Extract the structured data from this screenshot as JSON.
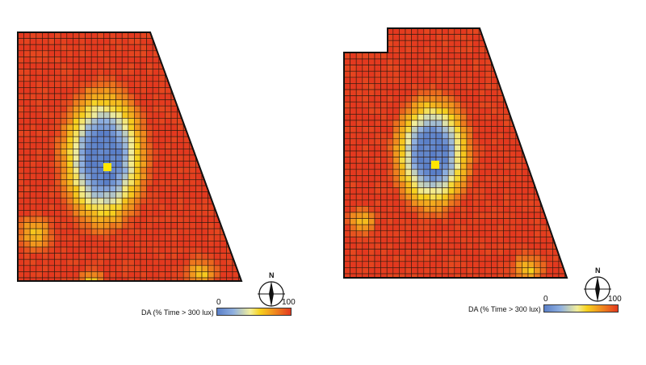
{
  "maps": [
    {
      "id": "left",
      "legend": {
        "label": "DA (% Time > 300 lux)",
        "min": "0",
        "max": "100"
      },
      "compass": {
        "north": "N"
      },
      "colors": {
        "low": "#5a7fc8",
        "mid": "#f7d21e",
        "high": "#e3391f"
      }
    },
    {
      "id": "right",
      "legend": {
        "label": "DA (% Time > 300 lux)",
        "min": "0",
        "max": "100"
      },
      "compass": {
        "north": "N"
      },
      "colors": {
        "low": "#5a7fc8",
        "mid": "#f7d21e",
        "high": "#e3391f"
      }
    }
  ]
}
